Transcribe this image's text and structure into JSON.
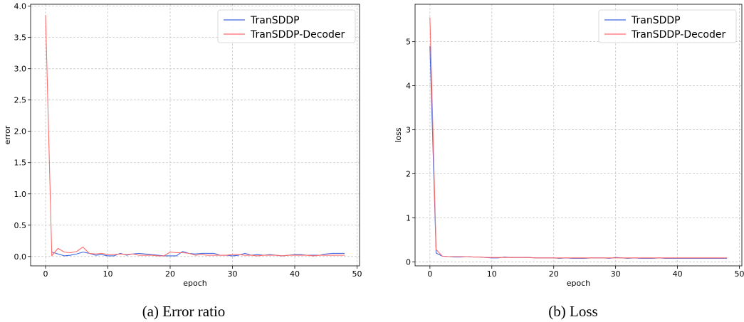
{
  "colors": {
    "TranSDDP": "#4169e1",
    "TranSDDP-Decoder": "#ff6b6b",
    "grid": "#c8c8c8"
  },
  "chart_data": [
    {
      "type": "line",
      "caption": "(a) Error ratio",
      "xlabel": "epoch",
      "ylabel": "error",
      "xlim": [
        -2.4,
        50.4
      ],
      "ylim": [
        -0.15,
        4.03
      ],
      "xticks": [
        0,
        10,
        20,
        30,
        40,
        50
      ],
      "yticks": [
        0.0,
        0.5,
        1.0,
        1.5,
        2.0,
        2.5,
        3.0,
        3.5,
        4.0
      ],
      "ytick_labels": [
        "0.0",
        "0.5",
        "1.0",
        "1.5",
        "2.0",
        "2.5",
        "3.0",
        "3.5",
        "4.0"
      ],
      "grid": true,
      "legend_position": "top-right",
      "x": [
        0,
        1,
        2,
        3,
        4,
        5,
        6,
        7,
        8,
        9,
        10,
        11,
        12,
        13,
        14,
        15,
        16,
        17,
        18,
        19,
        20,
        21,
        22,
        23,
        24,
        25,
        26,
        27,
        28,
        29,
        30,
        31,
        32,
        33,
        34,
        35,
        36,
        37,
        38,
        39,
        40,
        41,
        42,
        43,
        44,
        45,
        46,
        47,
        48
      ],
      "series": [
        {
          "name": "TranSDDP",
          "color_key": "TranSDDP",
          "values": [
            null,
            0.07,
            0.04,
            0.01,
            0.02,
            0.04,
            0.07,
            0.05,
            0.02,
            0.03,
            0.01,
            0.01,
            0.05,
            0.02,
            0.04,
            0.05,
            0.04,
            0.03,
            0.02,
            0.01,
            0.01,
            0.01,
            0.08,
            0.05,
            0.04,
            0.05,
            0.05,
            0.05,
            0.02,
            0.02,
            0.01,
            0.02,
            0.05,
            0.02,
            0.03,
            0.02,
            0.03,
            0.02,
            0.01,
            0.02,
            0.03,
            0.03,
            0.02,
            0.02,
            0.02,
            0.04,
            0.05,
            0.05,
            0.05
          ]
        },
        {
          "name": "TranSDDP-Decoder",
          "color_key": "TranSDDP-Decoder",
          "values": [
            3.86,
            0.01,
            0.13,
            0.07,
            0.06,
            0.08,
            0.15,
            0.05,
            0.04,
            0.05,
            0.03,
            0.03,
            0.04,
            0.03,
            0.04,
            0.02,
            0.02,
            0.02,
            0.01,
            0.01,
            0.07,
            0.06,
            0.06,
            0.05,
            0.02,
            0.03,
            0.02,
            0.02,
            0.02,
            0.02,
            0.03,
            0.03,
            0.02,
            0.02,
            0.01,
            0.02,
            0.02,
            0.02,
            0.01,
            0.02,
            0.02,
            0.02,
            0.02,
            0.01,
            0.02,
            0.02,
            0.02,
            0.02,
            0.02
          ]
        }
      ]
    },
    {
      "type": "line",
      "caption": "(b) Loss",
      "xlabel": "epoch",
      "ylabel": "loss",
      "xlim": [
        -2.4,
        50.4
      ],
      "ylim": [
        -0.09,
        5.85
      ],
      "xticks": [
        0,
        10,
        20,
        30,
        40,
        50
      ],
      "yticks": [
        0,
        1,
        2,
        3,
        4,
        5
      ],
      "ytick_labels": [
        "0",
        "1",
        "2",
        "3",
        "4",
        "5"
      ],
      "grid": true,
      "legend_position": "top-right",
      "x": [
        0,
        1,
        2,
        3,
        4,
        5,
        6,
        7,
        8,
        9,
        10,
        11,
        12,
        13,
        14,
        15,
        16,
        17,
        18,
        19,
        20,
        21,
        22,
        23,
        24,
        25,
        26,
        27,
        28,
        29,
        30,
        31,
        32,
        33,
        34,
        35,
        36,
        37,
        38,
        39,
        40,
        41,
        42,
        43,
        44,
        45,
        46,
        47,
        48
      ],
      "series": [
        {
          "name": "TranSDDP",
          "color_key": "TranSDDP",
          "values": [
            4.9,
            0.2,
            0.13,
            0.12,
            0.11,
            0.11,
            0.12,
            0.11,
            0.11,
            0.1,
            0.09,
            0.09,
            0.11,
            0.1,
            0.1,
            0.1,
            0.1,
            0.09,
            0.09,
            0.09,
            0.09,
            0.08,
            0.09,
            0.08,
            0.08,
            0.08,
            0.09,
            0.09,
            0.09,
            0.08,
            0.1,
            0.09,
            0.08,
            0.09,
            0.08,
            0.08,
            0.08,
            0.09,
            0.08,
            0.08,
            0.08,
            0.08,
            0.08,
            0.08,
            0.08,
            0.08,
            0.08,
            0.08,
            0.08
          ]
        },
        {
          "name": "TranSDDP-Decoder",
          "color_key": "TranSDDP-Decoder",
          "values": [
            5.55,
            0.28,
            0.13,
            0.12,
            0.12,
            0.12,
            0.12,
            0.11,
            0.11,
            0.1,
            0.1,
            0.1,
            0.1,
            0.1,
            0.1,
            0.1,
            0.1,
            0.09,
            0.09,
            0.09,
            0.09,
            0.09,
            0.09,
            0.09,
            0.09,
            0.09,
            0.09,
            0.09,
            0.09,
            0.09,
            0.09,
            0.09,
            0.09,
            0.09,
            0.09,
            0.09,
            0.09,
            0.09,
            0.09,
            0.09,
            0.09,
            0.09,
            0.09,
            0.09,
            0.09,
            0.09,
            0.09,
            0.09,
            0.09
          ]
        }
      ]
    }
  ]
}
